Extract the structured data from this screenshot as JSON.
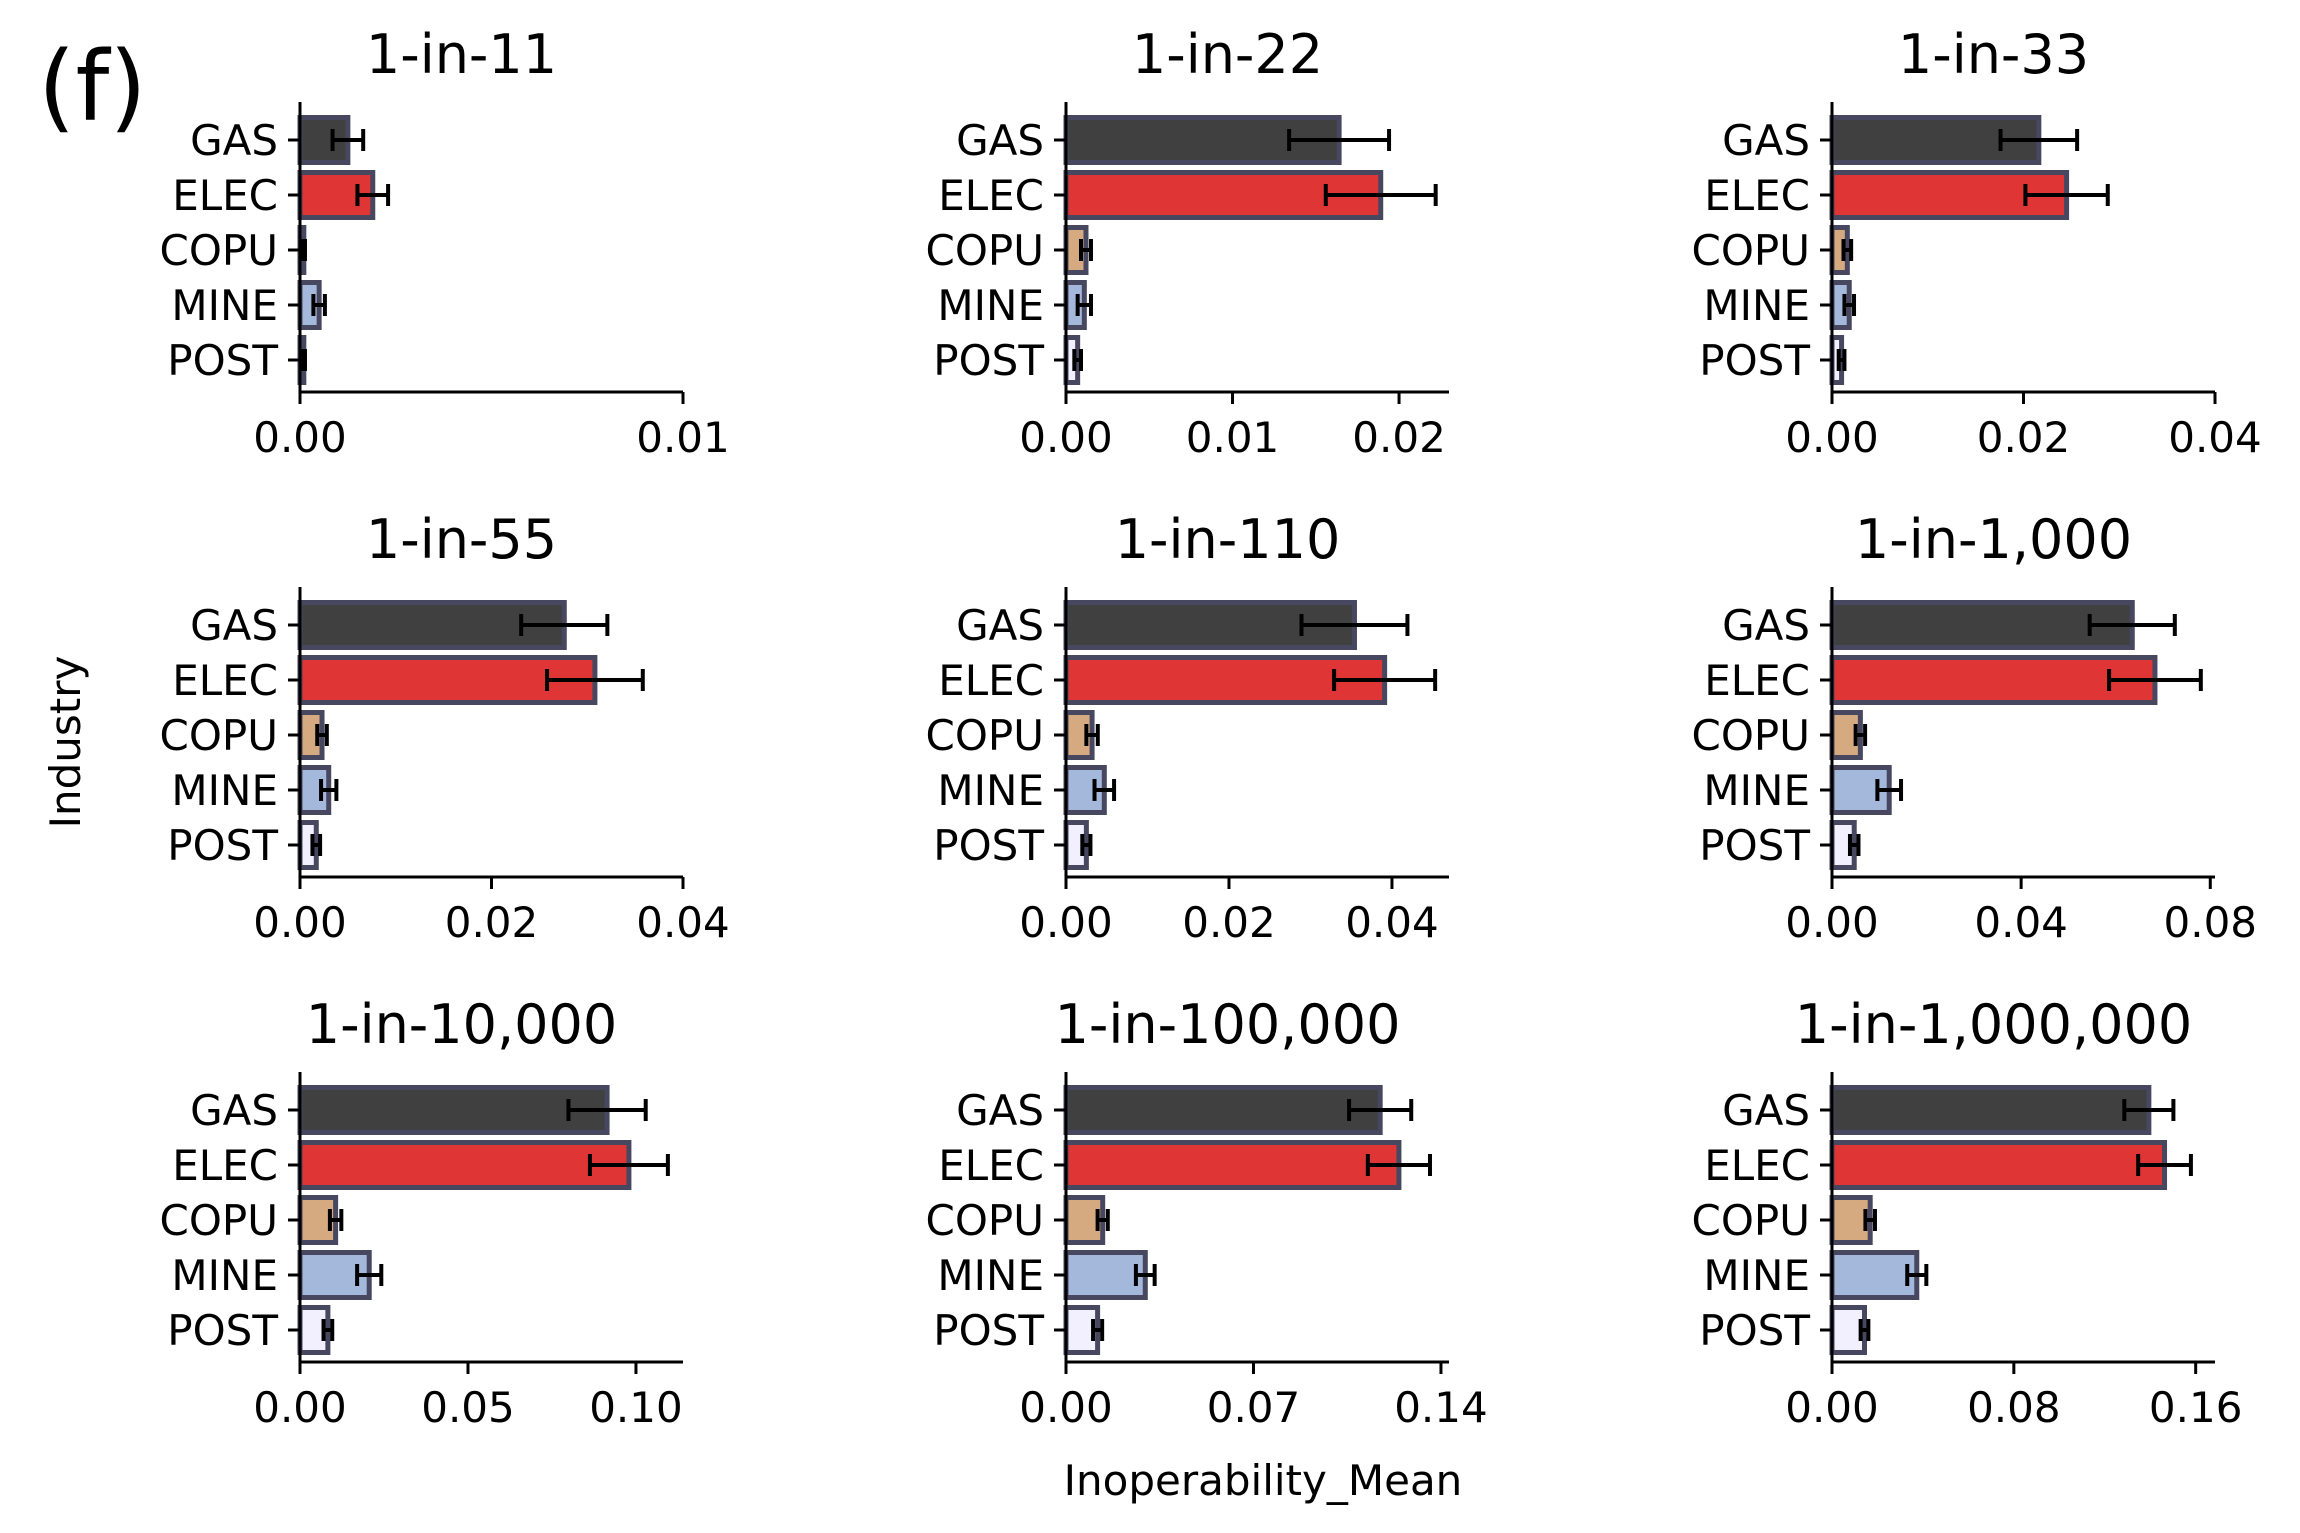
{
  "figure": {
    "panel_letter": "(f)",
    "ylabel": "Industry",
    "xlabel": "Inoperability_Mean"
  },
  "colors": {
    "GAS": "#404040",
    "ELEC": "#e03535",
    "COPU": "#d6aa80",
    "MINE": "#a4b8dc",
    "POST": "#f2efff",
    "edge": "#474760",
    "errorbar": "#000000"
  },
  "chart_data": [
    {
      "type": "bar",
      "orientation": "horizontal",
      "title": "1-in-11",
      "categories": [
        "GAS",
        "ELEC",
        "COPU",
        "MINE",
        "POST"
      ],
      "values": [
        0.00125,
        0.0019,
        0.0001,
        0.0005,
        0.0001
      ],
      "errors": [
        0.0004,
        0.0004,
        3e-05,
        0.00015,
        3e-05
      ],
      "xlim": [
        0,
        0.01
      ],
      "xticks": [
        0,
        0.01
      ],
      "xticklabels": [
        "0.00",
        "0.01"
      ]
    },
    {
      "type": "bar",
      "orientation": "horizontal",
      "title": "1-in-22",
      "categories": [
        "GAS",
        "ELEC",
        "COPU",
        "MINE",
        "POST"
      ],
      "values": [
        0.0164,
        0.0189,
        0.0012,
        0.0011,
        0.0007
      ],
      "errors": [
        0.003,
        0.0033,
        0.0003,
        0.0004,
        0.0002
      ],
      "xlim": [
        0,
        0.023
      ],
      "xticks": [
        0,
        0.01,
        0.02
      ],
      "xticklabels": [
        "0.00",
        "0.01",
        "0.02"
      ]
    },
    {
      "type": "bar",
      "orientation": "horizontal",
      "title": "1-in-33",
      "categories": [
        "GAS",
        "ELEC",
        "COPU",
        "MINE",
        "POST"
      ],
      "values": [
        0.0216,
        0.0245,
        0.0016,
        0.0018,
        0.001
      ],
      "errors": [
        0.004,
        0.0043,
        0.0004,
        0.0005,
        0.0003
      ],
      "xlim": [
        0,
        0.04
      ],
      "xticks": [
        0,
        0.02,
        0.04
      ],
      "xticklabels": [
        "0.00",
        "0.02",
        "0.04"
      ]
    },
    {
      "type": "bar",
      "orientation": "horizontal",
      "title": "1-in-55",
      "categories": [
        "GAS",
        "ELEC",
        "COPU",
        "MINE",
        "POST"
      ],
      "values": [
        0.0276,
        0.0308,
        0.0023,
        0.003,
        0.0017
      ],
      "errors": [
        0.0045,
        0.005,
        0.0005,
        0.0008,
        0.0004
      ],
      "xlim": [
        0,
        0.04
      ],
      "xticks": [
        0,
        0.02,
        0.04
      ],
      "xticklabels": [
        "0.00",
        "0.02",
        "0.04"
      ]
    },
    {
      "type": "bar",
      "orientation": "horizontal",
      "title": "1-in-110",
      "categories": [
        "GAS",
        "ELEC",
        "COPU",
        "MINE",
        "POST"
      ],
      "values": [
        0.0354,
        0.0391,
        0.0032,
        0.0047,
        0.0025
      ],
      "errors": [
        0.0065,
        0.0062,
        0.0007,
        0.0012,
        0.0005
      ],
      "xlim": [
        0,
        0.047
      ],
      "xticks": [
        0,
        0.02,
        0.04
      ],
      "xticklabels": [
        "0.00",
        "0.02",
        "0.04"
      ]
    },
    {
      "type": "bar",
      "orientation": "horizontal",
      "title": "1-in-1,000",
      "categories": [
        "GAS",
        "ELEC",
        "COPU",
        "MINE",
        "POST"
      ],
      "values": [
        0.0635,
        0.0683,
        0.006,
        0.0121,
        0.0047
      ],
      "errors": [
        0.009,
        0.0097,
        0.001,
        0.0025,
        0.0009
      ],
      "xlim": [
        0,
        0.081
      ],
      "xticks": [
        0,
        0.04,
        0.08
      ],
      "xticklabels": [
        "0.00",
        "0.04",
        "0.08"
      ]
    },
    {
      "type": "bar",
      "orientation": "horizontal",
      "title": "1-in-10,000",
      "categories": [
        "GAS",
        "ELEC",
        "COPU",
        "MINE",
        "POST"
      ],
      "values": [
        0.0914,
        0.0979,
        0.0106,
        0.0206,
        0.0083
      ],
      "errors": [
        0.0115,
        0.0116,
        0.0017,
        0.0036,
        0.0013
      ],
      "xlim": [
        0,
        0.114
      ],
      "xticks": [
        0,
        0.05,
        0.1
      ],
      "xticklabels": [
        "0.00",
        "0.05",
        "0.10"
      ]
    },
    {
      "type": "bar",
      "orientation": "horizontal",
      "title": "1-in-100,000",
      "categories": [
        "GAS",
        "ELEC",
        "COPU",
        "MINE",
        "POST"
      ],
      "values": [
        0.1173,
        0.1243,
        0.0137,
        0.0296,
        0.0118
      ],
      "errors": [
        0.0116,
        0.0116,
        0.0019,
        0.0035,
        0.0017
      ],
      "xlim": [
        0,
        0.143
      ],
      "xticks": [
        0,
        0.07,
        0.14
      ],
      "xticklabels": [
        "0.00",
        "0.07",
        "0.14"
      ]
    },
    {
      "type": "bar",
      "orientation": "horizontal",
      "title": "1-in-1,000,000",
      "categories": [
        "GAS",
        "ELEC",
        "COPU",
        "MINE",
        "POST"
      ],
      "values": [
        0.1394,
        0.1463,
        0.0168,
        0.0373,
        0.0143
      ],
      "errors": [
        0.0108,
        0.0116,
        0.0021,
        0.0042,
        0.0017
      ],
      "xlim": [
        0,
        0.1685
      ],
      "xticks": [
        0,
        0.08,
        0.16
      ],
      "xticklabels": [
        "0.00",
        "0.08",
        "0.16"
      ]
    }
  ]
}
